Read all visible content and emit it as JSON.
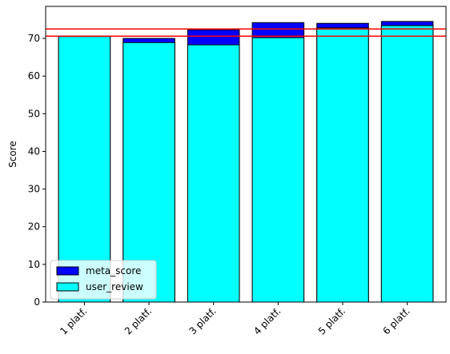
{
  "chart_data": {
    "type": "bar",
    "overlap": true,
    "ylabel": "Score",
    "categories": [
      "1 platf.",
      "2 platf.",
      "3 platf.",
      "4 platf.",
      "5 platf.",
      "6 platf."
    ],
    "series": [
      {
        "name": "meta_score",
        "color": "#0000ff",
        "values": [
          70.3,
          70.0,
          72.3,
          74.2,
          74.0,
          74.5
        ]
      },
      {
        "name": "user_review",
        "color": "#00ffff",
        "values": [
          70.5,
          68.9,
          68.3,
          70.2,
          72.8,
          73.4
        ]
      }
    ],
    "hlines": [
      72.5,
      70.6
    ],
    "hline_color": "#ff0000",
    "ylim": [
      0,
      78.5
    ],
    "yticks": [
      0,
      10,
      20,
      30,
      40,
      50,
      60,
      70
    ],
    "legend": "lower left"
  }
}
